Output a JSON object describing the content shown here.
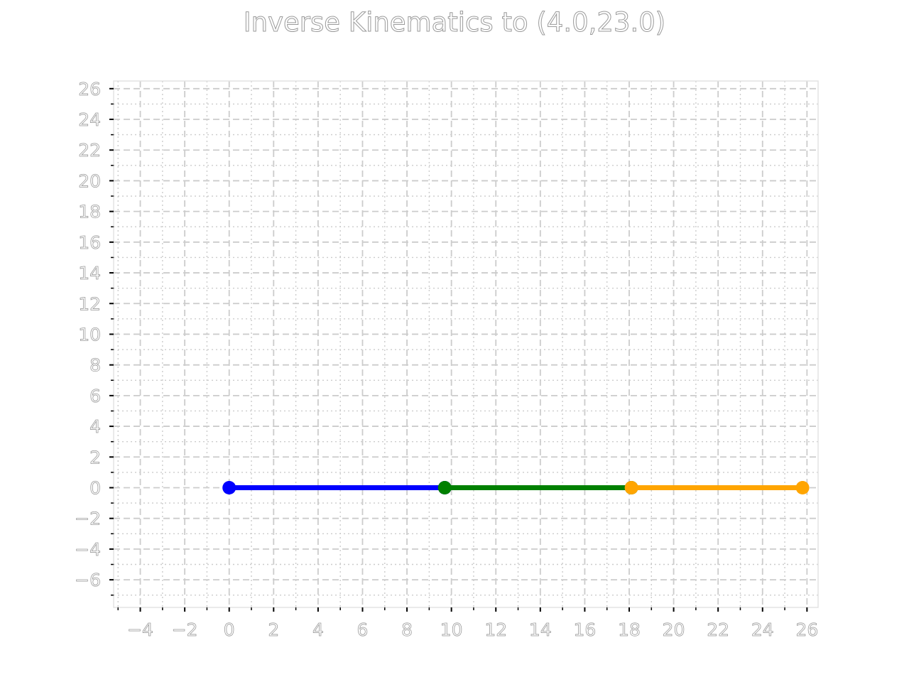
{
  "chart": {
    "title": "Inverse Kinematics to (4.0,23.0)"
  },
  "chart_data": {
    "type": "line",
    "title": "Inverse Kinematics to (4.0,23.0)",
    "xlabel": "",
    "ylabel": "",
    "xlim": [
      -5.2,
      26.5
    ],
    "ylim": [
      -7.8,
      26.5
    ],
    "xticks": [
      -4,
      -2,
      0,
      2,
      4,
      6,
      8,
      10,
      12,
      14,
      16,
      18,
      20,
      22,
      24,
      26
    ],
    "xtick_labels": [
      "−4",
      "−2",
      "0",
      "2",
      "4",
      "6",
      "8",
      "10",
      "12",
      "14",
      "16",
      "18",
      "20",
      "22",
      "24",
      "26"
    ],
    "yticks": [
      -6,
      -4,
      -2,
      0,
      2,
      4,
      6,
      8,
      10,
      12,
      14,
      16,
      18,
      20,
      22,
      24,
      26
    ],
    "ytick_labels": [
      "−6",
      "−4",
      "−2",
      "0",
      "2",
      "4",
      "6",
      "8",
      "10",
      "12",
      "14",
      "16",
      "18",
      "20",
      "22",
      "24",
      "26"
    ],
    "grid": true,
    "minor_grid": true,
    "series": [
      {
        "color": "#0000ff",
        "points": [
          [
            0,
            0
          ],
          [
            9.7,
            0
          ]
        ]
      },
      {
        "color": "#008000",
        "points": [
          [
            9.7,
            0
          ],
          [
            18.1,
            0
          ]
        ]
      },
      {
        "color": "#ffa500",
        "points": [
          [
            18.1,
            0
          ],
          [
            25.8,
            0
          ]
        ]
      }
    ],
    "colors": {
      "grid": "#cccccc",
      "axes": "#e3e3e3",
      "tick": "#000000"
    }
  }
}
